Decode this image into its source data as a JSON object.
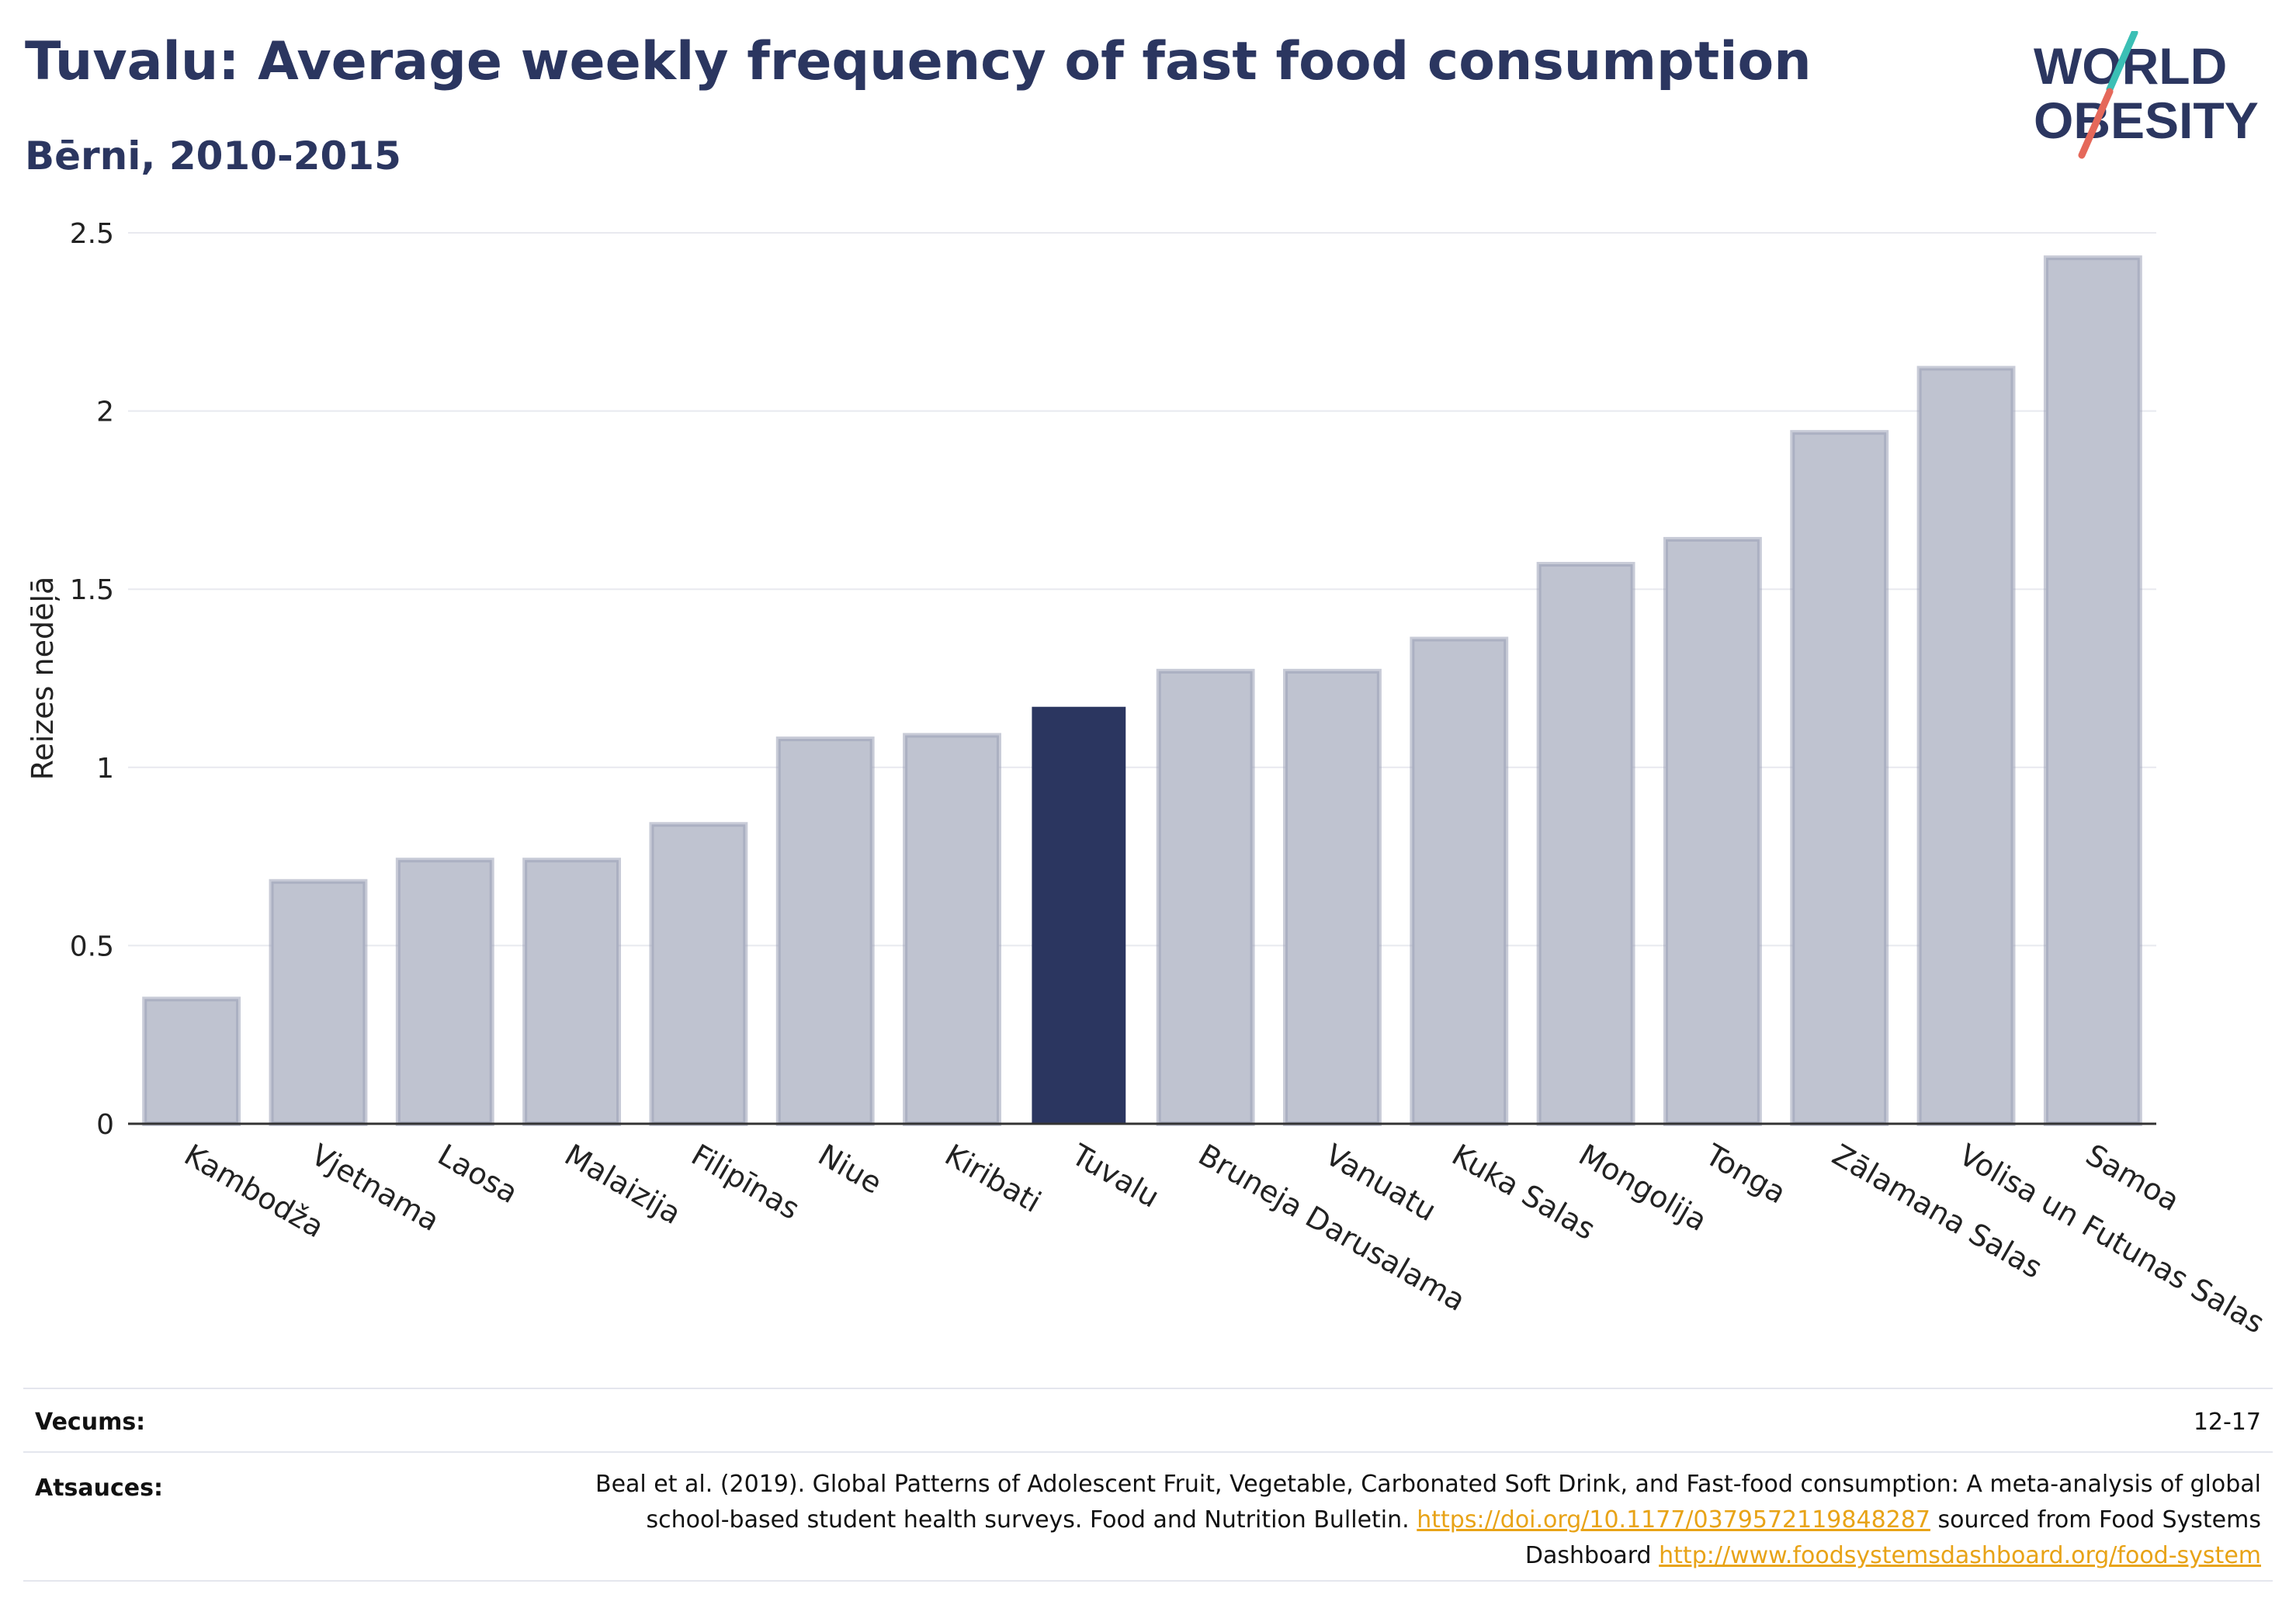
{
  "header": {
    "title": "Tuvalu: Average weekly frequency of fast food consumption",
    "subtitle": "Bērni, 2010-2015"
  },
  "logo": {
    "line1": "WORLD",
    "line2": "OBESITY",
    "accent_teal": "#3bbfb5",
    "accent_red": "#e5685a"
  },
  "colors": {
    "bar": "#bfc3d0",
    "bar_stroke": "#9aa0b6",
    "highlight": "#2b3660",
    "grid": "#e8e9ef",
    "axis": "#333333"
  },
  "chart_data": {
    "type": "bar",
    "title": "Tuvalu: Average weekly frequency of fast food consumption",
    "subtitle": "Bērni, 2010-2015",
    "xlabel": "",
    "ylabel": "Reizes nedēļā",
    "ylim": [
      0,
      2.5
    ],
    "yticks": [
      "0",
      "0.5",
      "1",
      "1.5",
      "2",
      "2.5"
    ],
    "grid": true,
    "highlight": "Tuvalu",
    "categories": [
      "Kambodža",
      "Vjetnama",
      "Laosa",
      "Malaizija",
      "Filipīnas",
      "Niue",
      "Kiribati",
      "Tuvalu",
      "Bruneja Darusalama",
      "Vanuatu",
      "Kuka Salas",
      "Mongolija",
      "Tonga",
      "Zālamana Salas",
      "Volisa un Futunas Salas",
      "Samoa"
    ],
    "values": [
      0.35,
      0.68,
      0.74,
      0.74,
      0.84,
      1.08,
      1.09,
      1.17,
      1.27,
      1.27,
      1.36,
      1.57,
      1.64,
      1.94,
      2.12,
      2.43
    ]
  },
  "footer": {
    "age_label": "Vecums:",
    "age_value": "12-17",
    "source_label": "Atsauces:",
    "source_text": "Beal et al. (2019). Global Patterns of Adolescent Fruit, Vegetable, Carbonated Soft Drink, and Fast-food consumption: A meta-analysis of global school-based student health surveys. Food and Nutrition Bulletin.",
    "doi_link": "https://doi.org/10.1177/0379572119848287",
    "sourced_from": "sourced from Food Systems Dashboard",
    "fsd_link": "http://www.foodsystemsdashboard.org/food-system"
  }
}
